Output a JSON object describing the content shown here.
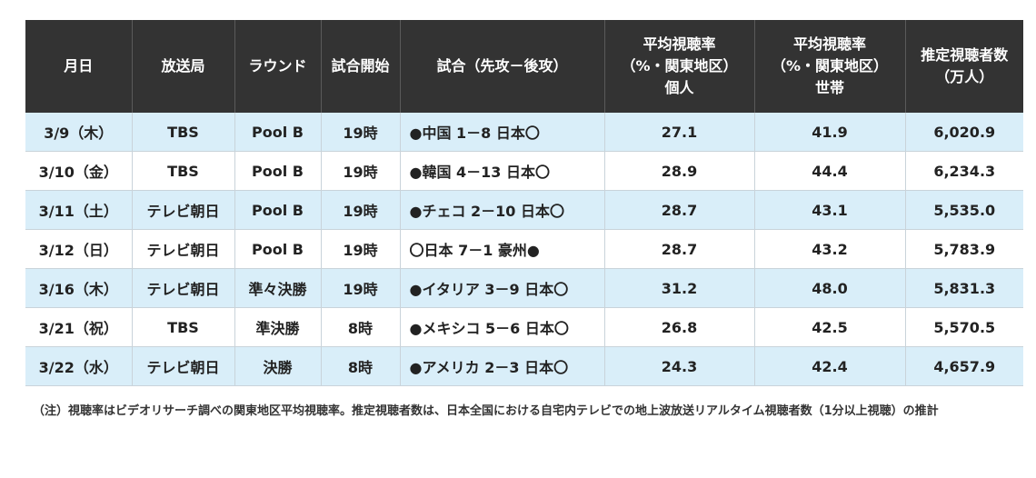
{
  "table": {
    "headers": [
      "月日",
      "放送局",
      "ラウンド",
      "試合開始",
      "試合（先攻－後攻）",
      "平均視聴率\n（%・関東地区）\n個人",
      "平均視聴率\n（%・関東地区）\n世帯",
      "推定視聴者数\n（万人）"
    ],
    "rows": [
      [
        "3/9（木）",
        "TBS",
        "Pool B",
        "19時",
        "●中国 1－8 日本〇",
        "27.1",
        "41.9",
        "6,020.9"
      ],
      [
        "3/10（金）",
        "TBS",
        "Pool B",
        "19時",
        "●韓国 4－13 日本〇",
        "28.9",
        "44.4",
        "6,234.3"
      ],
      [
        "3/11（土）",
        "テレビ朝日",
        "Pool B",
        "19時",
        "●チェコ 2－10 日本〇",
        "28.7",
        "43.1",
        "5,535.0"
      ],
      [
        "3/12（日）",
        "テレビ朝日",
        "Pool B",
        "19時",
        "〇日本 7－1 豪州●",
        "28.7",
        "43.2",
        "5,783.9"
      ],
      [
        "3/16（木）",
        "テレビ朝日",
        "準々決勝",
        "19時",
        "●イタリア 3－9 日本〇",
        "31.2",
        "48.0",
        "5,831.3"
      ],
      [
        "3/21（祝）",
        "TBS",
        "準決勝",
        "8時",
        "●メキシコ 5－6 日本〇",
        "26.8",
        "42.5",
        "5,570.5"
      ],
      [
        "3/22（水）",
        "テレビ朝日",
        "決勝",
        "8時",
        "●アメリカ 2－3 日本〇",
        "24.3",
        "42.4",
        "4,657.9"
      ]
    ]
  },
  "note": "（注）視聴率はビデオリサーチ調べの関東地区平均視聴率。推定視聴者数は、日本全国における自宅内テレビでの地上波放送リアルタイム視聴者数（1分以上視聴）の推計",
  "colors": {
    "header_bg": "#333333",
    "row_odd_bg": "#d9eef9",
    "row_even_bg": "#ffffff"
  }
}
